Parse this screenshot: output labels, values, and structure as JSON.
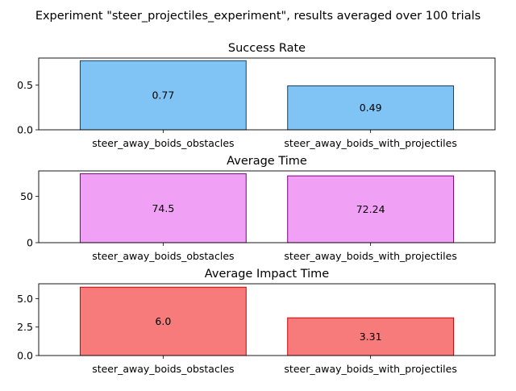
{
  "suptitle": "Experiment \"steer_projectiles_experiment\", results averaged over 100 trials",
  "chart_data": [
    {
      "type": "bar",
      "title": "Success Rate",
      "categories": [
        "steer_away_boids_obstacles",
        "steer_away_boids_with_projectiles"
      ],
      "values": [
        0.77,
        0.49
      ],
      "value_labels": [
        "0.77",
        "0.49"
      ],
      "ylim": [
        0,
        0.8
      ],
      "yticks": [
        0.0,
        0.5
      ],
      "ytick_labels": [
        "0.0",
        "0.5"
      ],
      "xlabel": "",
      "ylabel": "",
      "bar_color": "#7fc4f5",
      "edge_color": "#1c3e5c"
    },
    {
      "type": "bar",
      "title": "Average Time",
      "categories": [
        "steer_away_boids_obstacles",
        "steer_away_boids_with_projectiles"
      ],
      "values": [
        74.5,
        72.24
      ],
      "value_labels": [
        "74.5",
        "72.24"
      ],
      "ylim": [
        0,
        77.6
      ],
      "yticks": [
        0,
        50
      ],
      "ytick_labels": [
        "0",
        "50"
      ],
      "xlabel": "",
      "ylabel": "",
      "bar_color": "#f0a0f5",
      "edge_color": "#800080"
    },
    {
      "type": "bar",
      "title": "Average Impact Time",
      "categories": [
        "steer_away_boids_obstacles",
        "steer_away_boids_with_projectiles"
      ],
      "values": [
        6.0,
        3.31
      ],
      "value_labels": [
        "6.0",
        "3.31"
      ],
      "ylim": [
        0,
        6.3
      ],
      "yticks": [
        0.0,
        2.5,
        5.0
      ],
      "ytick_labels": [
        "0.0",
        "2.5",
        "5.0"
      ],
      "xlabel": "",
      "ylabel": "",
      "bar_color": "#f77b7b",
      "edge_color": "#cc0000"
    }
  ]
}
